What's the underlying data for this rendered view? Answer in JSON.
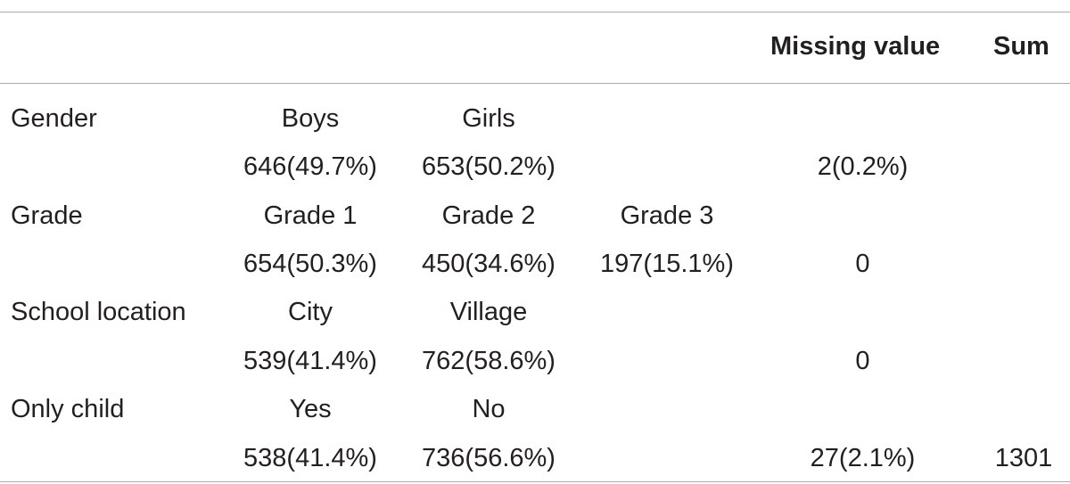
{
  "table": {
    "header": {
      "missing": "Missing value",
      "sum": "Sum"
    },
    "rows": [
      {
        "label": "Gender",
        "c1": "Boys",
        "c2": "Girls",
        "c3": "",
        "missing": "",
        "sum": ""
      },
      {
        "label": "",
        "c1": "646(49.7%)",
        "c2": "653(50.2%)",
        "c3": "",
        "missing": "2(0.2%)",
        "sum": ""
      },
      {
        "label": "Grade",
        "c1": "Grade 1",
        "c2": "Grade 2",
        "c3": "Grade 3",
        "missing": "",
        "sum": ""
      },
      {
        "label": "",
        "c1": "654(50.3%)",
        "c2": "450(34.6%)",
        "c3": "197(15.1%)",
        "missing": "0",
        "sum": ""
      },
      {
        "label": "School location",
        "c1": "City",
        "c2": "Village",
        "c3": "",
        "missing": "",
        "sum": ""
      },
      {
        "label": "",
        "c1": "539(41.4%)",
        "c2": "762(58.6%)",
        "c3": "",
        "missing": "0",
        "sum": ""
      },
      {
        "label": "Only child",
        "c1": "Yes",
        "c2": "No",
        "c3": "",
        "missing": "",
        "sum": ""
      },
      {
        "label": "",
        "c1": "538(41.4%)",
        "c2": "736(56.6%)",
        "c3": "",
        "missing": "27(2.1%)",
        "sum": "1301"
      }
    ]
  }
}
